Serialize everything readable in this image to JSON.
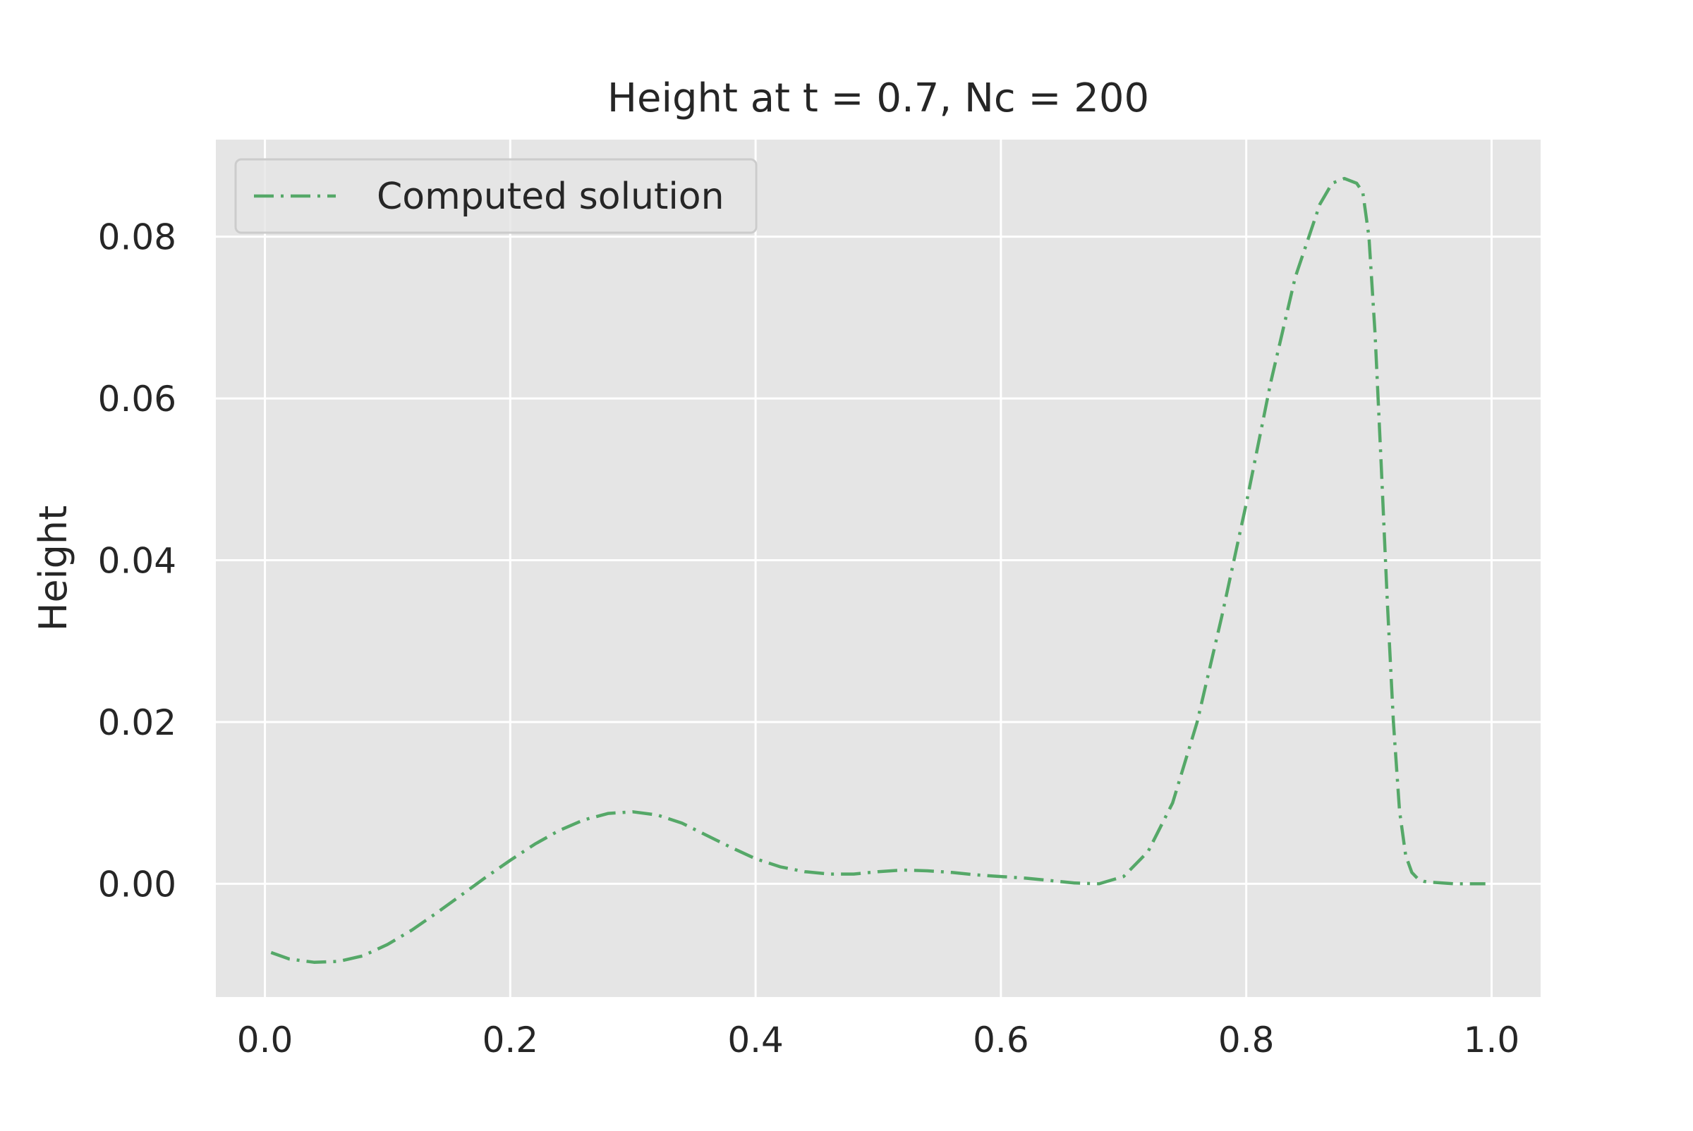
{
  "chart_data": {
    "type": "line",
    "title": "Height at t = 0.7, Nc = 200",
    "xlabel": "",
    "ylabel": "Height",
    "xlim": [
      -0.04,
      1.04
    ],
    "ylim": [
      -0.014,
      0.092
    ],
    "xticks": [
      0.0,
      0.2,
      0.4,
      0.6,
      0.8,
      1.0
    ],
    "xtick_labels": [
      "0.0",
      "0.2",
      "0.4",
      "0.6",
      "0.8",
      "1.0"
    ],
    "yticks": [
      0.0,
      0.02,
      0.04,
      0.06,
      0.08
    ],
    "ytick_labels": [
      "0.00",
      "0.02",
      "0.04",
      "0.06",
      "0.08"
    ],
    "grid": true,
    "legend_position": "upper-left",
    "background_color": "#e5e5e5",
    "grid_color": "#ffffff",
    "series": [
      {
        "name": "Computed solution",
        "color": "#55a868",
        "linestyle": "dash-dot",
        "x": [
          0.005,
          0.02,
          0.04,
          0.06,
          0.08,
          0.1,
          0.12,
          0.14,
          0.16,
          0.18,
          0.2,
          0.22,
          0.24,
          0.26,
          0.28,
          0.3,
          0.32,
          0.34,
          0.36,
          0.38,
          0.4,
          0.42,
          0.44,
          0.46,
          0.48,
          0.5,
          0.52,
          0.54,
          0.56,
          0.58,
          0.6,
          0.62,
          0.64,
          0.66,
          0.68,
          0.7,
          0.72,
          0.74,
          0.76,
          0.78,
          0.8,
          0.82,
          0.84,
          0.86,
          0.87,
          0.88,
          0.89,
          0.895,
          0.9,
          0.905,
          0.91,
          0.915,
          0.92,
          0.925,
          0.93,
          0.935,
          0.94,
          0.945,
          0.95,
          0.96,
          0.97,
          0.98,
          0.995
        ],
        "y": [
          -0.0085,
          -0.0093,
          -0.0097,
          -0.0096,
          -0.0089,
          -0.0075,
          -0.0057,
          -0.0036,
          -0.0014,
          0.0008,
          0.0029,
          0.0049,
          0.0066,
          0.0079,
          0.0087,
          0.0089,
          0.0085,
          0.0075,
          0.006,
          0.0045,
          0.0031,
          0.0021,
          0.0015,
          0.0012,
          0.0012,
          0.0015,
          0.0017,
          0.0016,
          0.0014,
          0.0011,
          0.0009,
          0.0007,
          0.0004,
          0.0001,
          0.0,
          0.0009,
          0.004,
          0.01,
          0.02,
          0.033,
          0.047,
          0.062,
          0.075,
          0.084,
          0.0866,
          0.0872,
          0.0866,
          0.0855,
          0.08,
          0.068,
          0.052,
          0.035,
          0.02,
          0.009,
          0.0035,
          0.0014,
          0.0006,
          0.0003,
          0.0002,
          0.0001,
          0.0,
          0.0,
          0.0
        ]
      }
    ]
  }
}
